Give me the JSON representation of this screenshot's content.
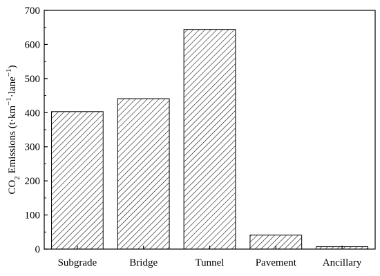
{
  "chart_data": {
    "type": "bar",
    "categories": [
      "Subgrade",
      "Bridge",
      "Tunnel",
      "Pavement",
      "Ancillary"
    ],
    "values": [
      403,
      441,
      644,
      41,
      7
    ],
    "title": "",
    "xlabel": "",
    "ylabel": {
      "prefix": "CO",
      "sub": "2",
      "middle": " Emissions (t·km",
      "sup1": "−1",
      "middle2": "·lane",
      "sup2": "−1",
      "suffix": ")"
    },
    "ylim": [
      0,
      700
    ],
    "yticks": [
      "0",
      "100",
      "200",
      "300",
      "400",
      "500",
      "600",
      "700"
    ],
    "bar_pattern": "diagonal-hatch",
    "bar_color": "#000000",
    "grid": false,
    "legend": "none"
  }
}
